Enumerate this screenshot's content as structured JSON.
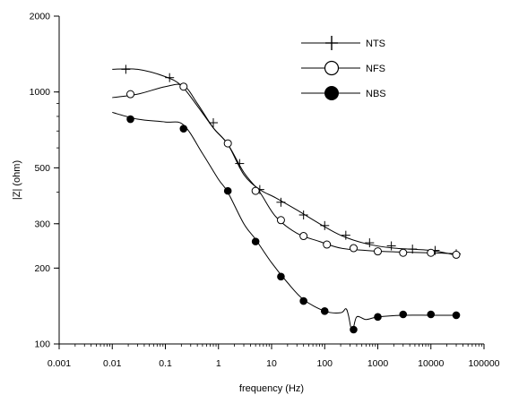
{
  "chart_data": {
    "type": "line",
    "title": "",
    "xlabel": "frequency (Hz)",
    "ylabel": "|Z| (ohm)",
    "x_scale": "log",
    "y_scale": "log",
    "xlim": [
      0.001,
      100000
    ],
    "ylim": [
      100,
      2000
    ],
    "x_ticks": [
      {
        "value": 0.001,
        "label": "0.001"
      },
      {
        "value": 0.01,
        "label": "0.01"
      },
      {
        "value": 0.1,
        "label": "0.1"
      },
      {
        "value": 1,
        "label": "1"
      },
      {
        "value": 10,
        "label": "10"
      },
      {
        "value": 100,
        "label": "100"
      },
      {
        "value": 1000,
        "label": "1000"
      },
      {
        "value": 10000,
        "label": "10000"
      },
      {
        "value": 100000,
        "label": "100000"
      }
    ],
    "y_ticks": [
      {
        "value": 100,
        "label": "100"
      },
      {
        "value": 200,
        "label": "200"
      },
      {
        "value": 300,
        "label": "300"
      },
      {
        "value": 500,
        "label": "500"
      },
      {
        "value": 1000,
        "label": "1000"
      },
      {
        "value": 2000,
        "label": "2000"
      }
    ],
    "grid": false,
    "legend_position": "top-right",
    "series": [
      {
        "name": "NTS",
        "marker": "plus",
        "curve": [
          [
            0.01,
            1230
          ],
          [
            0.03,
            1230
          ],
          [
            0.1,
            1150
          ],
          [
            0.2,
            1060
          ],
          [
            0.4,
            880
          ],
          [
            0.8,
            720
          ],
          [
            1.5,
            620
          ],
          [
            3,
            470
          ],
          [
            6,
            410
          ],
          [
            12,
            380
          ],
          [
            30,
            340
          ],
          [
            80,
            300
          ],
          [
            200,
            270
          ],
          [
            600,
            250
          ],
          [
            2000,
            240
          ],
          [
            10000,
            235
          ],
          [
            30000,
            225
          ]
        ],
        "markers": [
          [
            0.018,
            1230
          ],
          [
            0.12,
            1140
          ],
          [
            0.8,
            755
          ],
          [
            2.5,
            520
          ],
          [
            6,
            410
          ],
          [
            15,
            365
          ],
          [
            40,
            325
          ],
          [
            100,
            295
          ],
          [
            250,
            270
          ],
          [
            700,
            252
          ],
          [
            1800,
            245
          ],
          [
            4500,
            238
          ],
          [
            12000,
            235
          ],
          [
            30000,
            228
          ]
        ]
      },
      {
        "name": "NFS",
        "marker": "open-circle",
        "curve": [
          [
            0.01,
            950
          ],
          [
            0.03,
            980
          ],
          [
            0.1,
            1050
          ],
          [
            0.22,
            1060
          ],
          [
            0.4,
            900
          ],
          [
            0.8,
            720
          ],
          [
            1.5,
            620
          ],
          [
            3,
            480
          ],
          [
            6,
            400
          ],
          [
            12,
            320
          ],
          [
            30,
            275
          ],
          [
            80,
            255
          ],
          [
            200,
            240
          ],
          [
            600,
            235
          ],
          [
            2000,
            232
          ],
          [
            10000,
            230
          ],
          [
            30000,
            228
          ]
        ],
        "markers": [
          [
            0.022,
            980
          ],
          [
            0.22,
            1050
          ],
          [
            1.5,
            625
          ],
          [
            5,
            405
          ],
          [
            15,
            310
          ],
          [
            40,
            268
          ],
          [
            110,
            248
          ],
          [
            350,
            240
          ],
          [
            1000,
            233
          ],
          [
            3000,
            230
          ],
          [
            10000,
            230
          ],
          [
            30000,
            226
          ]
        ]
      },
      {
        "name": "NBS",
        "marker": "filled-circle",
        "curve": [
          [
            0.01,
            830
          ],
          [
            0.03,
            780
          ],
          [
            0.1,
            760
          ],
          [
            0.22,
            740
          ],
          [
            0.5,
            570
          ],
          [
            1,
            450
          ],
          [
            1.5,
            400
          ],
          [
            3,
            300
          ],
          [
            5,
            260
          ],
          [
            10,
            210
          ],
          [
            20,
            175
          ],
          [
            40,
            150
          ],
          [
            100,
            135
          ],
          [
            200,
            133
          ],
          [
            250,
            138
          ],
          [
            280,
            130
          ],
          [
            330,
            112
          ],
          [
            400,
            128
          ],
          [
            600,
            125
          ],
          [
            1000,
            128
          ],
          [
            3000,
            130
          ],
          [
            10000,
            130
          ],
          [
            30000,
            130
          ]
        ],
        "markers": [
          [
            0.022,
            780
          ],
          [
            0.22,
            715
          ],
          [
            1.5,
            405
          ],
          [
            5,
            255
          ],
          [
            15,
            185
          ],
          [
            40,
            148
          ],
          [
            100,
            135
          ],
          [
            350,
            114
          ],
          [
            1000,
            128
          ],
          [
            3000,
            131
          ],
          [
            10000,
            131
          ],
          [
            30000,
            130
          ]
        ]
      }
    ]
  }
}
